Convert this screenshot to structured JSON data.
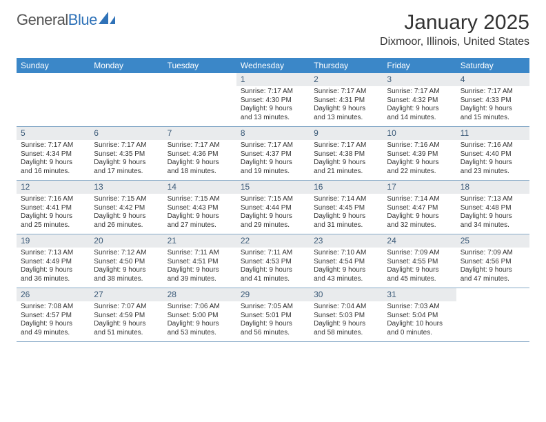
{
  "logo": {
    "text_1": "General",
    "text_2": "Blue"
  },
  "title": "January 2025",
  "location": "Dixmoor, Illinois, United States",
  "colors": {
    "header_bg": "#3b87c8",
    "daynum_bg": "#e9ebed",
    "daynum_color": "#3b5a78",
    "row_border": "#86a9c7",
    "logo_blue": "#2f72b8"
  },
  "day_labels": [
    "Sunday",
    "Monday",
    "Tuesday",
    "Wednesday",
    "Thursday",
    "Friday",
    "Saturday"
  ],
  "weeks": [
    [
      null,
      null,
      null,
      {
        "n": "1",
        "sr": "7:17 AM",
        "ss": "4:30 PM",
        "dl": "Daylight: 9 hours and 13 minutes."
      },
      {
        "n": "2",
        "sr": "7:17 AM",
        "ss": "4:31 PM",
        "dl": "Daylight: 9 hours and 13 minutes."
      },
      {
        "n": "3",
        "sr": "7:17 AM",
        "ss": "4:32 PM",
        "dl": "Daylight: 9 hours and 14 minutes."
      },
      {
        "n": "4",
        "sr": "7:17 AM",
        "ss": "4:33 PM",
        "dl": "Daylight: 9 hours and 15 minutes."
      }
    ],
    [
      {
        "n": "5",
        "sr": "7:17 AM",
        "ss": "4:34 PM",
        "dl": "Daylight: 9 hours and 16 minutes."
      },
      {
        "n": "6",
        "sr": "7:17 AM",
        "ss": "4:35 PM",
        "dl": "Daylight: 9 hours and 17 minutes."
      },
      {
        "n": "7",
        "sr": "7:17 AM",
        "ss": "4:36 PM",
        "dl": "Daylight: 9 hours and 18 minutes."
      },
      {
        "n": "8",
        "sr": "7:17 AM",
        "ss": "4:37 PM",
        "dl": "Daylight: 9 hours and 19 minutes."
      },
      {
        "n": "9",
        "sr": "7:17 AM",
        "ss": "4:38 PM",
        "dl": "Daylight: 9 hours and 21 minutes."
      },
      {
        "n": "10",
        "sr": "7:16 AM",
        "ss": "4:39 PM",
        "dl": "Daylight: 9 hours and 22 minutes."
      },
      {
        "n": "11",
        "sr": "7:16 AM",
        "ss": "4:40 PM",
        "dl": "Daylight: 9 hours and 23 minutes."
      }
    ],
    [
      {
        "n": "12",
        "sr": "7:16 AM",
        "ss": "4:41 PM",
        "dl": "Daylight: 9 hours and 25 minutes."
      },
      {
        "n": "13",
        "sr": "7:15 AM",
        "ss": "4:42 PM",
        "dl": "Daylight: 9 hours and 26 minutes."
      },
      {
        "n": "14",
        "sr": "7:15 AM",
        "ss": "4:43 PM",
        "dl": "Daylight: 9 hours and 27 minutes."
      },
      {
        "n": "15",
        "sr": "7:15 AM",
        "ss": "4:44 PM",
        "dl": "Daylight: 9 hours and 29 minutes."
      },
      {
        "n": "16",
        "sr": "7:14 AM",
        "ss": "4:45 PM",
        "dl": "Daylight: 9 hours and 31 minutes."
      },
      {
        "n": "17",
        "sr": "7:14 AM",
        "ss": "4:47 PM",
        "dl": "Daylight: 9 hours and 32 minutes."
      },
      {
        "n": "18",
        "sr": "7:13 AM",
        "ss": "4:48 PM",
        "dl": "Daylight: 9 hours and 34 minutes."
      }
    ],
    [
      {
        "n": "19",
        "sr": "7:13 AM",
        "ss": "4:49 PM",
        "dl": "Daylight: 9 hours and 36 minutes."
      },
      {
        "n": "20",
        "sr": "7:12 AM",
        "ss": "4:50 PM",
        "dl": "Daylight: 9 hours and 38 minutes."
      },
      {
        "n": "21",
        "sr": "7:11 AM",
        "ss": "4:51 PM",
        "dl": "Daylight: 9 hours and 39 minutes."
      },
      {
        "n": "22",
        "sr": "7:11 AM",
        "ss": "4:53 PM",
        "dl": "Daylight: 9 hours and 41 minutes."
      },
      {
        "n": "23",
        "sr": "7:10 AM",
        "ss": "4:54 PM",
        "dl": "Daylight: 9 hours and 43 minutes."
      },
      {
        "n": "24",
        "sr": "7:09 AM",
        "ss": "4:55 PM",
        "dl": "Daylight: 9 hours and 45 minutes."
      },
      {
        "n": "25",
        "sr": "7:09 AM",
        "ss": "4:56 PM",
        "dl": "Daylight: 9 hours and 47 minutes."
      }
    ],
    [
      {
        "n": "26",
        "sr": "7:08 AM",
        "ss": "4:57 PM",
        "dl": "Daylight: 9 hours and 49 minutes."
      },
      {
        "n": "27",
        "sr": "7:07 AM",
        "ss": "4:59 PM",
        "dl": "Daylight: 9 hours and 51 minutes."
      },
      {
        "n": "28",
        "sr": "7:06 AM",
        "ss": "5:00 PM",
        "dl": "Daylight: 9 hours and 53 minutes."
      },
      {
        "n": "29",
        "sr": "7:05 AM",
        "ss": "5:01 PM",
        "dl": "Daylight: 9 hours and 56 minutes."
      },
      {
        "n": "30",
        "sr": "7:04 AM",
        "ss": "5:03 PM",
        "dl": "Daylight: 9 hours and 58 minutes."
      },
      {
        "n": "31",
        "sr": "7:03 AM",
        "ss": "5:04 PM",
        "dl": "Daylight: 10 hours and 0 minutes."
      },
      null
    ]
  ],
  "label_sunrise": "Sunrise: ",
  "label_sunset": "Sunset: "
}
